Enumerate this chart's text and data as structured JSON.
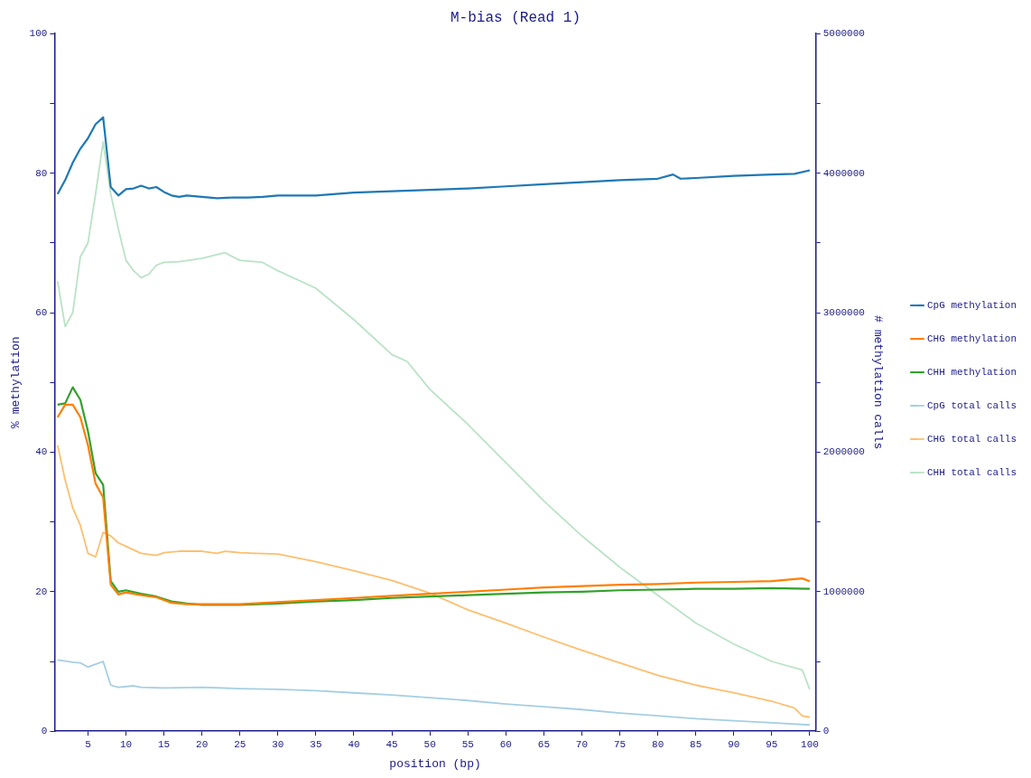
{
  "chart_data": {
    "type": "line",
    "title": "M-bias (Read 1)",
    "xlabel": "position (bp)",
    "ylabel": "% methylation",
    "y2label": "# methylation calls",
    "legend": "right",
    "marker": "none",
    "grid": false,
    "xlim": [
      0.6,
      100.8
    ],
    "xticks": [
      5,
      10,
      15,
      20,
      25,
      30,
      35,
      40,
      45,
      50,
      55,
      60,
      65,
      70,
      75,
      80,
      85,
      90,
      95,
      100
    ],
    "ylim": [
      0,
      100
    ],
    "yticks": [
      0,
      {
        "value": 10,
        "label": null
      },
      20,
      {
        "value": 30,
        "label": null
      },
      40,
      {
        "value": 50,
        "label": null
      },
      60,
      {
        "value": 70,
        "label": null
      },
      80,
      {
        "value": 90,
        "label": null
      },
      100
    ],
    "y2lim": [
      0,
      5000000
    ],
    "y2ticks": [
      0,
      {
        "value": 500000,
        "label": null
      },
      1000000,
      {
        "value": 1500000,
        "label": null
      },
      2000000,
      {
        "value": 2500000,
        "label": null
      },
      3000000,
      {
        "value": 3500000,
        "label": null
      },
      4000000,
      {
        "value": 4500000,
        "label": null
      },
      5000000
    ],
    "series": [
      {
        "name": "CpG methylation",
        "color": "#1f78b4",
        "x": [
          1,
          2,
          3,
          4,
          5,
          6,
          7,
          8,
          9,
          10,
          11,
          12,
          13,
          14,
          15,
          16,
          17,
          18,
          20,
          22,
          24,
          26,
          28,
          30,
          35,
          40,
          45,
          50,
          55,
          60,
          65,
          70,
          75,
          80,
          82,
          83,
          85,
          90,
          95,
          98,
          100
        ],
        "values": [
          77,
          79,
          81.5,
          83.5,
          85,
          87,
          88,
          78,
          76.8,
          77.7,
          77.8,
          78.2,
          77.8,
          78,
          77.3,
          76.8,
          76.6,
          76.8,
          76.6,
          76.4,
          76.5,
          76.5,
          76.6,
          76.8,
          76.8,
          77.2,
          77.4,
          77.6,
          77.8,
          78.1,
          78.4,
          78.7,
          79,
          79.2,
          79.8,
          79.2,
          79.3,
          79.6,
          79.8,
          79.9,
          80.4
        ]
      },
      {
        "name": "CHG methylation",
        "color": "#ff7f00",
        "x": [
          1,
          2,
          3,
          4,
          5,
          6,
          7,
          8,
          9,
          10,
          12,
          14,
          16,
          18,
          20,
          25,
          30,
          35,
          40,
          45,
          50,
          55,
          60,
          65,
          70,
          75,
          80,
          85,
          90,
          95,
          99,
          100
        ],
        "values": [
          45,
          46.8,
          46.8,
          45,
          41,
          35.5,
          33.5,
          21,
          19.6,
          19.9,
          19.5,
          19.2,
          18.4,
          18.2,
          18.2,
          18.2,
          18.5,
          18.8,
          19.1,
          19.4,
          19.7,
          20,
          20.3,
          20.6,
          20.8,
          21,
          21.1,
          21.3,
          21.4,
          21.5,
          21.9,
          21.5
        ]
      },
      {
        "name": "CHH methylation",
        "color": "#33a02c",
        "x": [
          1,
          2,
          3,
          4,
          5,
          6,
          7,
          8,
          9,
          10,
          12,
          14,
          16,
          18,
          20,
          25,
          30,
          35,
          40,
          45,
          50,
          55,
          60,
          65,
          70,
          75,
          80,
          85,
          90,
          95,
          100
        ],
        "values": [
          46.8,
          47,
          49.3,
          47.5,
          43,
          37,
          35.3,
          21.5,
          20,
          20.2,
          19.7,
          19.3,
          18.6,
          18.3,
          18.1,
          18.1,
          18.3,
          18.6,
          18.8,
          19.1,
          19.3,
          19.5,
          19.7,
          19.9,
          20,
          20.2,
          20.3,
          20.4,
          20.4,
          20.5,
          20.4
        ]
      },
      {
        "name": "CpG total calls",
        "color": "#a6cee3",
        "axis": "y2",
        "x": [
          1,
          3,
          4,
          5,
          6,
          7,
          8,
          9,
          11,
          12,
          15,
          20,
          25,
          30,
          35,
          40,
          45,
          50,
          55,
          60,
          65,
          70,
          75,
          80,
          85,
          90,
          95,
          100
        ],
        "values": [
          510000,
          495000,
          490000,
          460000,
          480000,
          500000,
          330000,
          315000,
          325000,
          315000,
          310000,
          315000,
          305000,
          300000,
          290000,
          275000,
          260000,
          240000,
          220000,
          195000,
          175000,
          155000,
          130000,
          110000,
          90000,
          75000,
          60000,
          45000
        ]
      },
      {
        "name": "CHG total calls",
        "color": "#fdbf6f",
        "axis": "y2",
        "x": [
          1,
          2,
          3,
          4,
          5,
          6,
          7,
          8,
          9,
          10,
          12,
          14,
          15,
          17,
          20,
          22,
          23,
          25,
          27,
          30,
          35,
          40,
          45,
          50,
          55,
          60,
          65,
          70,
          75,
          80,
          85,
          90,
          95,
          98,
          99,
          100
        ],
        "values": [
          2050000,
          1800000,
          1600000,
          1475000,
          1275000,
          1250000,
          1425000,
          1400000,
          1350000,
          1325000,
          1275000,
          1260000,
          1280000,
          1290000,
          1290000,
          1275000,
          1290000,
          1280000,
          1275000,
          1270000,
          1215000,
          1150000,
          1080000,
          990000,
          870000,
          775000,
          675000,
          580000,
          490000,
          400000,
          330000,
          275000,
          215000,
          165000,
          110000,
          100000
        ]
      },
      {
        "name": "CHH total calls",
        "color": "#b9e3c6",
        "axis": "y2",
        "x": [
          1,
          2,
          3,
          4,
          5,
          6,
          7,
          8,
          9,
          10,
          11,
          12,
          13,
          14,
          15,
          17,
          20,
          23,
          25,
          28,
          30,
          35,
          40,
          45,
          47,
          50,
          55,
          60,
          65,
          70,
          75,
          80,
          85,
          90,
          95,
          99,
          100
        ],
        "values": [
          3225000,
          2900000,
          3000000,
          3400000,
          3500000,
          3850000,
          4225000,
          3850000,
          3600000,
          3375000,
          3300000,
          3250000,
          3275000,
          3340000,
          3360000,
          3365000,
          3390000,
          3430000,
          3375000,
          3360000,
          3300000,
          3175000,
          2950000,
          2700000,
          2650000,
          2450000,
          2200000,
          1925000,
          1650000,
          1400000,
          1175000,
          975000,
          775000,
          625000,
          500000,
          440000,
          300000
        ]
      }
    ]
  }
}
